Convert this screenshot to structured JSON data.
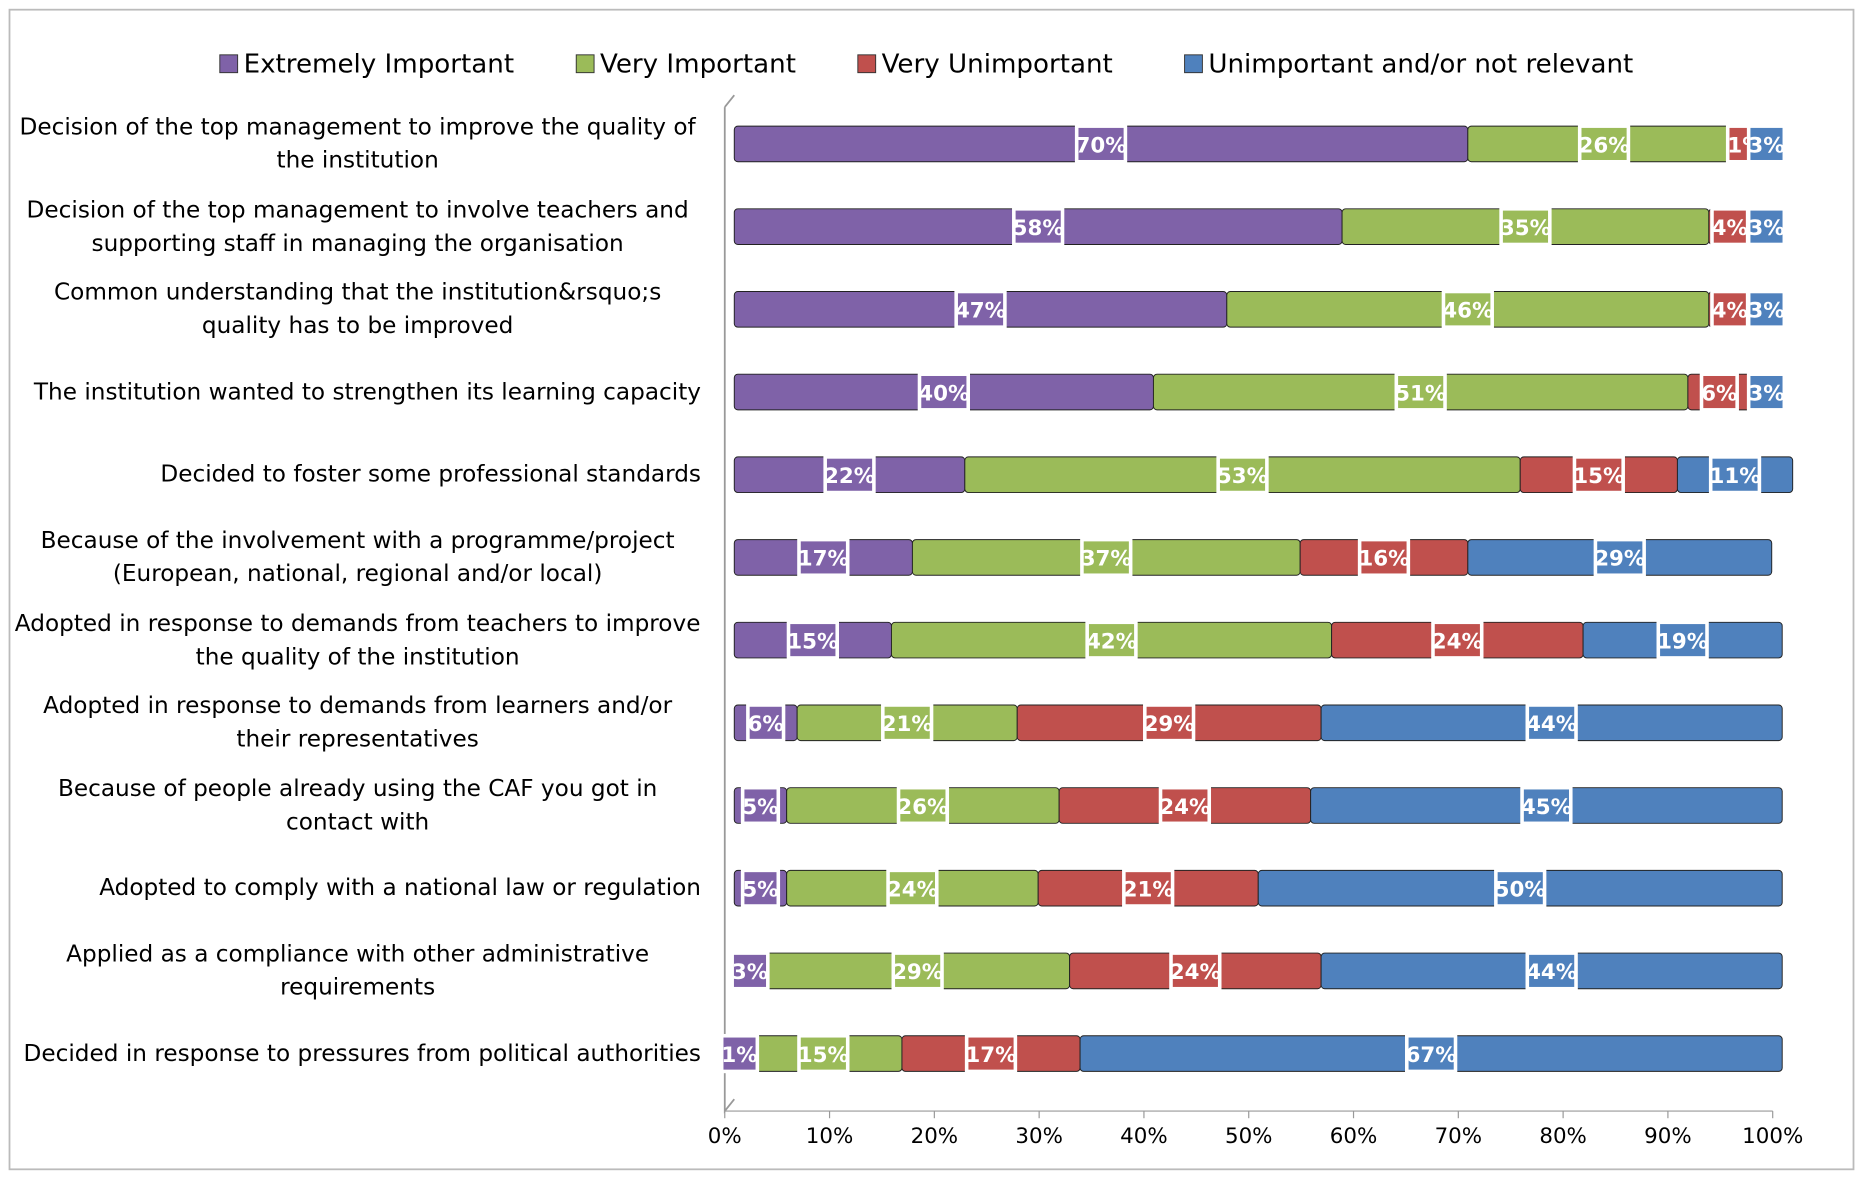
{
  "chart_data": {
    "type": "bar",
    "orientation": "horizontal",
    "stacked": true,
    "categories": [
      "Decision of the top management to improve the quality of the institution",
      "Decision of the top management to involve teachers and supporting staff in managing the organisation",
      "Common understanding that the institution&rsquo;s quality has to be improved",
      "The institution wanted to strengthen its learning capacity",
      "Decided to foster some professional standards",
      "Because of the involvement with a programme/project (European, national, regional and/or local)",
      "Adopted in response to demands from teachers to improve the quality of the institution",
      "Adopted in response to demands from learners and/or their representatives",
      "Because of people already using the CAF you got in contact with",
      "Adopted to comply with a national law or regulation",
      "Applied as a compliance with other administrative requirements",
      "Decided in response to pressures from political authorities"
    ],
    "series": [
      {
        "name": "Extremely Important",
        "color": "#7f62a8",
        "values": [
          70,
          58,
          47,
          40,
          22,
          17,
          15,
          6,
          5,
          5,
          3,
          1
        ],
        "value_labels": [
          "70%",
          "58%",
          "47%",
          "40%",
          "22%",
          "17%",
          "15%",
          "6%",
          "5%",
          "5%",
          "3%",
          "1%"
        ]
      },
      {
        "name": "Very Important",
        "color": "#9bbb59",
        "values": [
          26,
          35,
          46,
          51,
          53,
          37,
          42,
          21,
          26,
          24,
          29,
          15
        ],
        "value_labels": [
          "26%",
          "35%",
          "46%",
          "51%",
          "53%",
          "37%",
          "42%",
          "21%",
          "26%",
          "24%",
          "29%",
          "15%"
        ]
      },
      {
        "name": "Very Unimportant",
        "color": "#c0504d",
        "values": [
          1,
          4,
          4,
          6,
          15,
          16,
          24,
          29,
          24,
          21,
          24,
          17
        ],
        "value_labels": [
          "1%",
          "4%",
          "4%",
          "6%",
          "15%",
          "16%",
          "24%",
          "29%",
          "24%",
          "21%",
          "24%",
          "17%"
        ]
      },
      {
        "name": "Unimportant and/or not relevant",
        "color": "#4f81bd",
        "values": [
          3,
          3,
          3,
          3,
          11,
          29,
          19,
          44,
          45,
          50,
          44,
          67
        ],
        "value_labels": [
          "3%",
          "3%",
          "3%",
          "3%",
          "11%",
          "29%",
          "19%",
          "44%",
          "45%",
          "50%",
          "44%",
          "67%"
        ]
      }
    ],
    "xlim": [
      0,
      100
    ],
    "xticks": [
      {
        "value": 0,
        "label": "0%"
      },
      {
        "value": 10,
        "label": "10%"
      },
      {
        "value": 20,
        "label": "20%"
      },
      {
        "value": 30,
        "label": "30%"
      },
      {
        "value": 40,
        "label": "40%"
      },
      {
        "value": 50,
        "label": "50%"
      },
      {
        "value": 60,
        "label": "60%"
      },
      {
        "value": 70,
        "label": "70%"
      },
      {
        "value": 80,
        "label": "80%"
      },
      {
        "value": 90,
        "label": "90%"
      },
      {
        "value": 100,
        "label": "100%"
      }
    ],
    "legend": "top",
    "grid": false
  }
}
